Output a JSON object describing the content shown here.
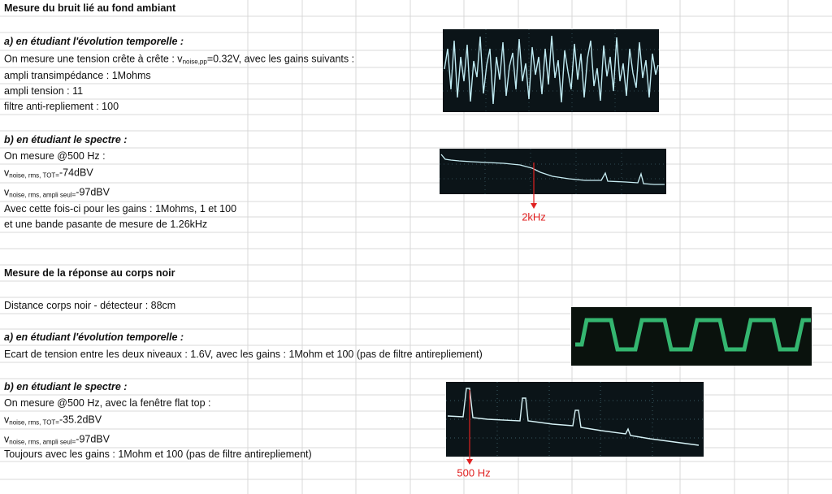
{
  "rows": [
    [
      "Mesure du bruit lié au fond ambiant"
    ],
    [
      "a) en étudiant l'évolution temporelle :"
    ],
    [
      "On mesure une tension crête à crête : v",
      "noise,pp",
      "=0.32V, avec les gains suivants :"
    ],
    [
      "ampli transimpédance : 1Mohms"
    ],
    [
      "ampli tension : 11"
    ],
    [
      "filtre anti-repliement : 100"
    ],
    [
      "b) en étudiant le spectre :"
    ],
    [
      "On mesure @500 Hz :"
    ],
    [
      "v",
      "noise, rms, TOT=",
      "-74dBV"
    ],
    [
      "v",
      "noise, rms, ampli seul=",
      "-97dBV"
    ],
    [
      "Avec cette fois-ci pour les gains : 1Mohms, 1 et 100"
    ],
    [
      "et une bande pasante de mesure de 1.26kHz"
    ],
    [
      "Mesure de la réponse au corps noir"
    ],
    [
      "Distance corps noir - détecteur : 88cm"
    ],
    [
      "a) en étudiant l'évolution temporelle :"
    ],
    [
      "Ecart de tension entre les deux niveaux : 1.6V, avec les gains : 1Mohm et 100 (pas de filtre antirepliement)"
    ],
    [
      "b) en étudiant le spectre :"
    ],
    [
      "On mesure @500 Hz, avec la fenêtre flat top :"
    ],
    [
      "v",
      "noise, rms, TOT=",
      "-35.2dBV"
    ],
    [
      "v",
      "noise, rms, ampli seul=",
      "-97dBV"
    ],
    [
      "Toujours avec les gains : 1Mohm et 100 (pas de filtre antirepliement)"
    ]
  ],
  "annotations": [
    "2kHz",
    "500 Hz"
  ]
}
